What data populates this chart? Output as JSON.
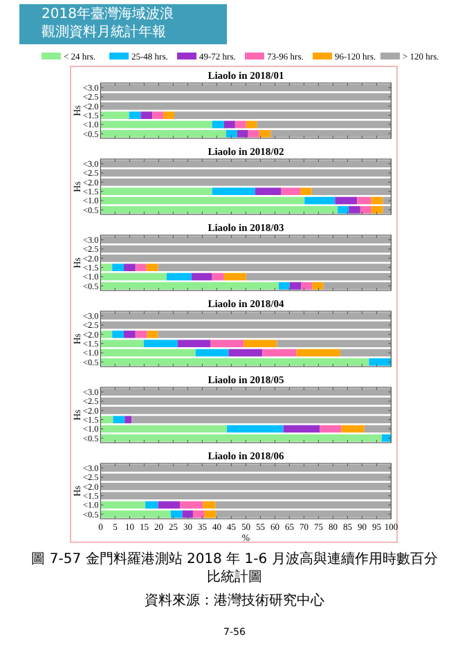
{
  "chart_data": [
    {
      "type": "bar",
      "orientation": "horizontal",
      "stacked": true,
      "title": "Liaolo in 2018/01",
      "ylabel": "Hs",
      "categories": [
        "<3.0",
        "<2.5",
        "<2.0",
        "<1.5",
        "<1.0",
        "<0.5"
      ],
      "xlim": [
        0,
        100
      ],
      "xticks": [
        0,
        5,
        10,
        15,
        20,
        25,
        30,
        35,
        40,
        45,
        50,
        55,
        60,
        65,
        70,
        75,
        80,
        85,
        90,
        95,
        100
      ],
      "tick_labels": "y",
      "legend": "top",
      "annotations": [
        "2018年臺灣海域波浪",
        "觀測資料月統計年報"
      ],
      "series": [
        {
          "name": "< 24 hrs.",
          "color": "#90ee90",
          "values": [
            0,
            0,
            0,
            9.8,
            38.4,
            43.2
          ]
        },
        {
          "name": "25-48 hrs.",
          "color": "#00bfff",
          "values": [
            0,
            0,
            0,
            4,
            4.1,
            3.8
          ]
        },
        {
          "name": "49-72 hrs.",
          "color": "#9932cc",
          "values": [
            0,
            0,
            0,
            4,
            3.8,
            3.8
          ]
        },
        {
          "name": "73-96 hrs.",
          "color": "#ff69b4",
          "values": [
            0,
            0,
            0,
            3.8,
            3.8,
            3.8
          ]
        },
        {
          "name": "96-120 hrs.",
          "color": "#ffa500",
          "values": [
            0,
            0,
            0,
            3.8,
            3.8,
            4
          ]
        },
        {
          "name": "> 120 hrs.",
          "color": "#a9a9a9",
          "values": [
            100,
            100,
            100,
            74.6,
            46.1,
            41.4
          ]
        }
      ]
    },
    {
      "type": "bar",
      "orientation": "horizontal",
      "stacked": true,
      "title": "Liaolo in 2018/02",
      "ylabel": "Hs",
      "categories": [
        "<3.0",
        "<2.5",
        "<2.0",
        "<1.5",
        "<1.0",
        "<0.5"
      ],
      "xlim": [
        0,
        100
      ],
      "xticks": [
        0,
        5,
        10,
        15,
        20,
        25,
        30,
        35,
        40,
        45,
        50,
        55,
        60,
        65,
        70,
        75,
        80,
        85,
        90,
        95,
        100
      ],
      "tick_labels": "y",
      "series": [
        {
          "color": "#90ee90",
          "values": [
            0,
            0,
            0,
            38.4,
            70.2,
            81.6
          ]
        },
        {
          "color": "#00bfff",
          "values": [
            0,
            0,
            0,
            14.8,
            10.5,
            3.8
          ]
        },
        {
          "color": "#9932cc",
          "values": [
            0,
            0,
            0,
            9,
            7.6,
            4
          ]
        },
        {
          "color": "#ff69b4",
          "values": [
            0,
            0,
            0,
            6.5,
            4.8,
            3.8
          ]
        },
        {
          "color": "#ffa500",
          "values": [
            0,
            0,
            0,
            4,
            4.1,
            4
          ]
        },
        {
          "color": "#a9a9a9",
          "values": [
            100,
            100,
            100,
            27.3,
            2.8,
            2.8
          ]
        }
      ]
    },
    {
      "type": "bar",
      "orientation": "horizontal",
      "stacked": true,
      "title": "Liaolo in 2018/03",
      "ylabel": "Hs",
      "categories": [
        "<3.0",
        "<2.5",
        "<2.0",
        "<1.5",
        "<1.0",
        "<0.5"
      ],
      "xlim": [
        0,
        100
      ],
      "xticks": [
        0,
        5,
        10,
        15,
        20,
        25,
        30,
        35,
        40,
        45,
        50,
        55,
        60,
        65,
        70,
        75,
        80,
        85,
        90,
        95,
        100
      ],
      "tick_labels": "y",
      "series": [
        {
          "color": "#90ee90",
          "values": [
            0,
            0,
            0,
            4,
            22.7,
            61.3
          ]
        },
        {
          "color": "#00bfff",
          "values": [
            0,
            0,
            0,
            4,
            8.6,
            3.8
          ]
        },
        {
          "color": "#9932cc",
          "values": [
            0,
            0,
            0,
            4,
            7.1,
            4
          ]
        },
        {
          "color": "#ff69b4",
          "values": [
            0,
            0,
            0,
            3.8,
            4.1,
            3.8
          ]
        },
        {
          "color": "#ffa500",
          "values": [
            0,
            0,
            0,
            4,
            7.6,
            3.8
          ]
        },
        {
          "color": "#a9a9a9",
          "values": [
            100,
            100,
            100,
            80.2,
            49.9,
            23.3
          ]
        }
      ]
    },
    {
      "type": "bar",
      "orientation": "horizontal",
      "stacked": true,
      "title": "Liaolo in 2018/04",
      "ylabel": "Hs",
      "categories": [
        "<3.0",
        "<2.5",
        "<2.0",
        "<1.5",
        "<1.0",
        "<0.5"
      ],
      "xlim": [
        0,
        100
      ],
      "xticks": [
        0,
        5,
        10,
        15,
        20,
        25,
        30,
        35,
        40,
        45,
        50,
        55,
        60,
        65,
        70,
        75,
        80,
        85,
        90,
        95,
        100
      ],
      "tick_labels": "y",
      "series": [
        {
          "color": "#90ee90",
          "values": [
            0,
            0,
            4,
            14.9,
            32.7,
            92.4
          ]
        },
        {
          "color": "#00bfff",
          "values": [
            0,
            0,
            4,
            11.6,
            11.4,
            7.6
          ]
        },
        {
          "color": "#9932cc",
          "values": [
            0,
            0,
            4,
            11.4,
            11.6,
            0
          ]
        },
        {
          "color": "#ff69b4",
          "values": [
            0,
            0,
            4,
            11.4,
            11.7,
            0
          ]
        },
        {
          "color": "#ffa500",
          "values": [
            0,
            0,
            3.8,
            11.4,
            15.1,
            0
          ]
        },
        {
          "color": "#a9a9a9",
          "values": [
            100,
            100,
            80.2,
            39.3,
            17.5,
            0
          ]
        }
      ]
    },
    {
      "type": "bar",
      "orientation": "horizontal",
      "stacked": true,
      "title": "Liaolo in 2018/05",
      "ylabel": "Hs",
      "categories": [
        "<3.0",
        "<2.5",
        "<2.0",
        "<1.5",
        "<1.0",
        "<0.5"
      ],
      "xlim": [
        0,
        100
      ],
      "xticks": [
        0,
        5,
        10,
        15,
        20,
        25,
        30,
        35,
        40,
        45,
        50,
        55,
        60,
        65,
        70,
        75,
        80,
        85,
        90,
        95,
        100
      ],
      "tick_labels": "y",
      "series": [
        {
          "color": "#90ee90",
          "values": [
            0,
            0,
            0,
            4.3,
            43.5,
            96.8
          ]
        },
        {
          "color": "#00bfff",
          "values": [
            0,
            0,
            0,
            4,
            19.4,
            3.2
          ]
        },
        {
          "color": "#9932cc",
          "values": [
            0,
            0,
            0,
            2.4,
            12.5,
            0
          ]
        },
        {
          "color": "#ff69b4",
          "values": [
            0,
            0,
            0,
            0,
            7.5,
            0
          ]
        },
        {
          "color": "#ffa500",
          "values": [
            0,
            0,
            0,
            0,
            7.9,
            0
          ]
        },
        {
          "color": "#a9a9a9",
          "values": [
            100,
            100,
            100,
            89.3,
            9.2,
            0
          ]
        }
      ]
    },
    {
      "type": "bar",
      "orientation": "horizontal",
      "stacked": true,
      "title": "Liaolo in 2018/06",
      "ylabel": "Hs",
      "xlabel": "%",
      "categories": [
        "<3.0",
        "<2.5",
        "<2.0",
        "<1.5",
        "<1.0",
        "<0.5"
      ],
      "xlim": [
        0,
        100
      ],
      "xticks": [
        0,
        5,
        10,
        15,
        20,
        25,
        30,
        35,
        40,
        45,
        50,
        55,
        60,
        65,
        70,
        75,
        80,
        85,
        90,
        95,
        100
      ],
      "annotations": [
        "圖 7-57 金門料羅港測站 2018 年 1-6 月波高與連續作用時數百分比統計圖",
        "資料來源：港灣技術研究中心",
        "7-56"
      ],
      "series": [
        {
          "color": "#90ee90",
          "values": [
            0,
            0,
            0,
            0,
            15.4,
            24.1
          ]
        },
        {
          "color": "#00bfff",
          "values": [
            0,
            0,
            0,
            0,
            4.4,
            4
          ]
        },
        {
          "color": "#9932cc",
          "values": [
            0,
            0,
            0,
            0,
            7.5,
            3.7
          ]
        },
        {
          "color": "#ff69b4",
          "values": [
            0,
            0,
            0,
            0,
            7.9,
            4
          ]
        },
        {
          "color": "#ffa500",
          "values": [
            0,
            0,
            0,
            0,
            4.4,
            4
          ]
        },
        {
          "color": "#a9a9a9",
          "values": [
            100,
            100,
            100,
            100,
            60.4,
            60.2
          ]
        }
      ]
    }
  ]
}
